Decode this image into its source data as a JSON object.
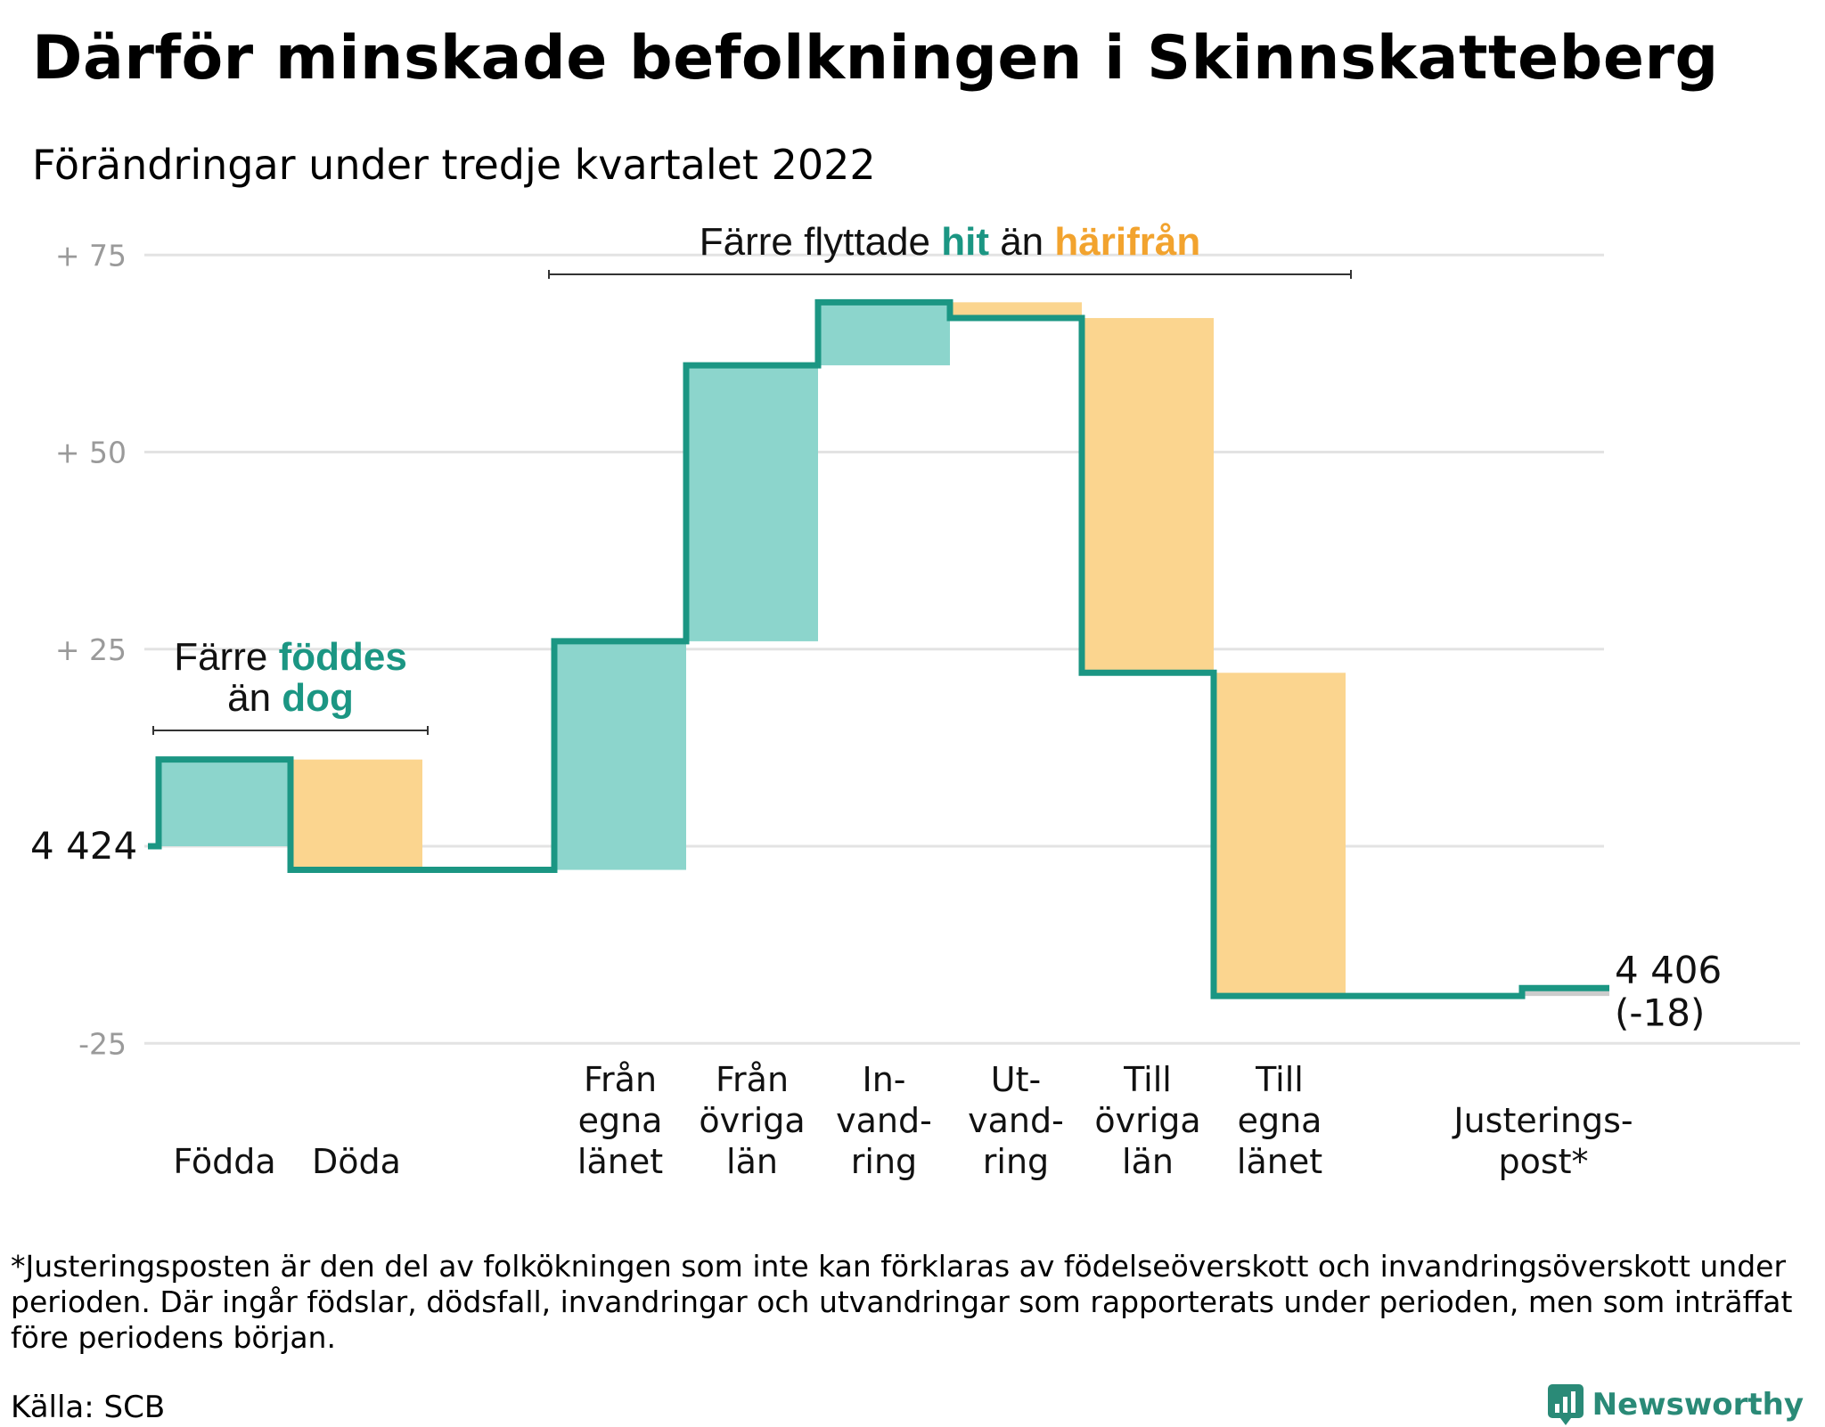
{
  "title": "Därför minskade befolkningen i Skinnskatteberg",
  "subtitle": "Förändringar under tredje kvartalet 2022",
  "colors": {
    "teal": "#1b9683",
    "teal_light": "#8cd5cc",
    "orange": "#f2a32e",
    "orange_light": "#fbd58f",
    "grid": "#e3e3e3",
    "adjustment": "#cccccc"
  },
  "chart_data": {
    "type": "bar",
    "chart_kind": "waterfall",
    "start_value": 4424,
    "start_label": "4 424",
    "end_value": 4406,
    "end_label": "4 406",
    "end_change_label": "(-18)",
    "y_axis": {
      "range": [
        -25,
        75
      ],
      "ticks": [
        {
          "value": 75,
          "label": "+ 75"
        },
        {
          "value": 50,
          "label": "+ 50"
        },
        {
          "value": 25,
          "label": "+ 25"
        },
        {
          "value": 0,
          "label": ""
        },
        {
          "value": -25,
          "label": "-25"
        }
      ],
      "grid": true
    },
    "categories": [
      {
        "label": [
          "Födda"
        ],
        "change": 11,
        "kind": "in"
      },
      {
        "label": [
          "Döda"
        ],
        "change": -14,
        "kind": "out"
      },
      {
        "label": [],
        "change": 0,
        "kind": "gap"
      },
      {
        "label": [
          "Från",
          "egna",
          "länet"
        ],
        "change": 29,
        "kind": "in"
      },
      {
        "label": [
          "Från",
          "övriga",
          "län"
        ],
        "change": 35,
        "kind": "in"
      },
      {
        "label": [
          "In-",
          "vand-",
          "ring"
        ],
        "change": 8,
        "kind": "in"
      },
      {
        "label": [
          "Ut-",
          "vand-",
          "ring"
        ],
        "change": -2,
        "kind": "out"
      },
      {
        "label": [
          "Till",
          "övriga",
          "län"
        ],
        "change": -45,
        "kind": "out"
      },
      {
        "label": [
          "Till",
          "egna",
          "länet"
        ],
        "change": -41,
        "kind": "out"
      },
      {
        "label": [],
        "change": 0,
        "kind": "gap"
      },
      {
        "label": [
          "Justerings-",
          "post*"
        ],
        "change": 1,
        "kind": "adjustment"
      }
    ],
    "annotations": [
      {
        "from": 0,
        "to": 1,
        "lines": [
          [
            "Färre ",
            "föddes",
            ""
          ],
          [
            "än ",
            "dog",
            ""
          ]
        ]
      },
      {
        "from": 3,
        "to": 8,
        "lines": [
          [
            "Färre flyttade ",
            "hit",
            " än ",
            "härifrån"
          ]
        ]
      }
    ]
  },
  "footnote": "*Justeringsposten är den del av folkökningen som inte kan förklaras av födelseöverskott och invandringsöverskott under perioden. Där ingår födslar, dödsfall, invandringar och utvandringar som rapporterats under perioden, men som inträffat före periodens början.",
  "source": "Källa: SCB",
  "brand": {
    "name": "Newsworthy",
    "logo_icon": "newsworthy-logo-icon"
  }
}
